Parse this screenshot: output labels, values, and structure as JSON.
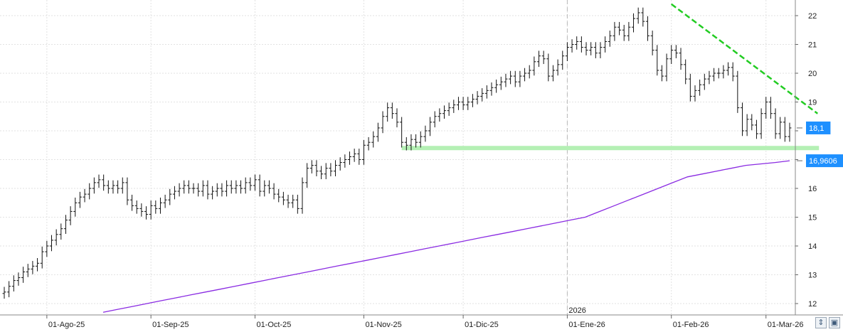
{
  "chart_data": {
    "type": "ohlc",
    "title": "",
    "xlabel": "",
    "ylabel": "",
    "ylim": [
      11.6,
      22.6
    ],
    "y_ticks": [
      12,
      13,
      14,
      15,
      16,
      17,
      18,
      19,
      20,
      21,
      22
    ],
    "x_ticks": [
      {
        "label": "01-Ago-25",
        "index": 9
      },
      {
        "label": "01-Sep-25",
        "index": 31
      },
      {
        "label": "01-Oct-25",
        "index": 53
      },
      {
        "label": "01-Nov-25",
        "index": 76
      },
      {
        "label": "01-Dic-25",
        "index": 97
      },
      {
        "label": "01-Ene-26",
        "index": 119
      },
      {
        "label": "01-Feb-26",
        "index": 141
      },
      {
        "label": "01-Mar-26",
        "index": 161
      }
    ],
    "year_marker": {
      "label": "2026",
      "index": 119
    },
    "grid": true,
    "closes": [
      12.4,
      12.6,
      12.8,
      12.9,
      13.1,
      13.2,
      13.3,
      13.4,
      13.8,
      14.0,
      14.2,
      14.4,
      14.6,
      14.9,
      15.2,
      15.5,
      15.7,
      15.8,
      16.0,
      16.2,
      16.3,
      16.1,
      16.0,
      16.1,
      16.0,
      16.2,
      15.6,
      15.4,
      15.3,
      15.2,
      15.1,
      15.4,
      15.3,
      15.5,
      15.6,
      15.8,
      15.9,
      16.0,
      16.1,
      16.0,
      16.0,
      15.9,
      16.1,
      15.8,
      15.9,
      16.0,
      15.9,
      16.1,
      16.0,
      16.1,
      16.0,
      16.2,
      16.1,
      16.3,
      15.9,
      16.1,
      16.0,
      15.8,
      15.7,
      15.6,
      15.5,
      15.6,
      15.3,
      16.2,
      16.7,
      16.8,
      16.6,
      16.5,
      16.7,
      16.6,
      16.8,
      16.9,
      17.0,
      17.1,
      17.2,
      17.0,
      17.5,
      17.6,
      17.8,
      18.1,
      18.5,
      18.8,
      18.6,
      18.3,
      17.6,
      17.5,
      17.7,
      17.6,
      17.8,
      18.0,
      18.3,
      18.5,
      18.6,
      18.7,
      18.8,
      18.9,
      19.0,
      18.9,
      19.0,
      19.1,
      19.2,
      19.3,
      19.4,
      19.5,
      19.6,
      19.7,
      19.8,
      19.9,
      19.7,
      19.9,
      20.0,
      20.1,
      20.4,
      20.6,
      20.5,
      19.9,
      20.1,
      20.3,
      20.6,
      20.9,
      21.0,
      21.1,
      20.9,
      20.8,
      20.9,
      20.7,
      20.9,
      21.1,
      21.3,
      21.6,
      21.5,
      21.3,
      21.6,
      21.9,
      22.1,
      21.8,
      21.3,
      20.8,
      20.1,
      19.9,
      20.5,
      20.8,
      20.7,
      20.3,
      19.8,
      19.2,
      19.4,
      19.6,
      19.8,
      19.9,
      20.0,
      20.0,
      20.1,
      20.2,
      19.9,
      18.8,
      18.0,
      18.4,
      18.2,
      17.9,
      18.6,
      19.0,
      18.6,
      17.9,
      18.3,
      17.8,
      18.1
    ]
  },
  "overlays": {
    "moving_average": {
      "color": "#8a2be2",
      "values": [
        11.7,
        11.8,
        11.9,
        12.0,
        12.1,
        12.2,
        12.3,
        12.4,
        12.5,
        12.6,
        12.7,
        12.8,
        12.9,
        13.0,
        13.1,
        13.2,
        13.3,
        13.4,
        13.5,
        13.6,
        13.7,
        13.8,
        13.9,
        14.0,
        14.1,
        14.2,
        14.3,
        14.4,
        14.5,
        14.6,
        14.7,
        14.8,
        14.9,
        15.0,
        15.2,
        15.4,
        15.6,
        15.8,
        16.0,
        16.2,
        16.4,
        16.5,
        16.6,
        16.7,
        16.8,
        16.85,
        16.9,
        16.9606
      ]
    },
    "support_line": {
      "color": "#b4f0b4",
      "value": 17.4,
      "from_index": 84,
      "to_index": 171
    },
    "resistance_line": {
      "color": "#22cc22",
      "from": {
        "index": 141,
        "value": 22.4
      },
      "to": {
        "index": 171,
        "value": 18.6
      }
    }
  },
  "price_badges": [
    {
      "label": "18,1",
      "value": 18.1,
      "bg": "#1e90ff"
    },
    {
      "label": "16,9606",
      "value": 16.9606,
      "bg": "#1e90ff"
    }
  ],
  "controls": {
    "zoom_icon": "chevron-up-down-icon",
    "save_icon": "save-icon"
  }
}
